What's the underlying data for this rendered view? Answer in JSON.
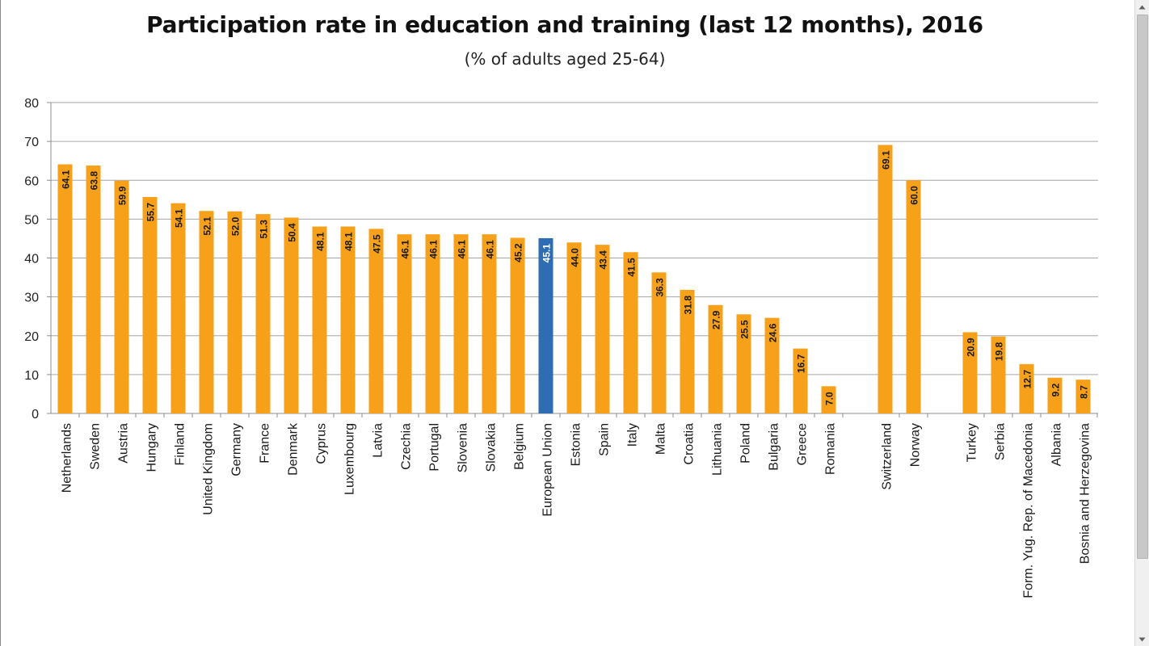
{
  "chart_data": {
    "type": "bar",
    "title": "Participation rate in education and training (last 12 months), 2016",
    "subtitle": "(% of adults aged 25-64)",
    "xlabel": "",
    "ylabel": "",
    "ylim": [
      0,
      80
    ],
    "yticks": [
      0,
      10,
      20,
      30,
      40,
      50,
      60,
      70,
      80
    ],
    "grid": true,
    "legend": "none",
    "colors": {
      "default": "#F7A11B",
      "highlight": "#2E6DB4",
      "grid": "#A6A6A6"
    },
    "groups": [
      {
        "categories": [
          "Netherlands",
          "Sweden",
          "Austria",
          "Hungary",
          "Finland",
          "United Kingdom",
          "Germany",
          "France",
          "Denmark",
          "Cyprus",
          "Luxembourg",
          "Latvia",
          "Czechia",
          "Portugal",
          "Slovenia",
          "Slovakia",
          "Belgium",
          "European Union",
          "Estonia",
          "Spain",
          "Italy",
          "Malta",
          "Croatia",
          "Lithuania",
          "Poland",
          "Bulgaria",
          "Greece",
          "Romania"
        ],
        "values": [
          64.1,
          63.8,
          59.9,
          55.7,
          54.1,
          52.1,
          52.0,
          51.3,
          50.4,
          48.1,
          48.1,
          47.5,
          46.1,
          46.1,
          46.1,
          46.1,
          45.2,
          45.1,
          44.0,
          43.4,
          41.5,
          36.3,
          31.8,
          27.9,
          25.5,
          24.6,
          16.7,
          7.0
        ],
        "labels": [
          "64.1",
          "63.8",
          "59.9",
          "55.7",
          "54.1",
          "52.1",
          "52.0",
          "51.3",
          "50.4",
          "48.1",
          "48.1",
          "47.5",
          "46.1",
          "46.1",
          "46.1",
          "46.1",
          "45.2",
          "45.1",
          "44.0",
          "43.4",
          "41.5",
          "36.3",
          "31.8",
          "27.9",
          "25.5",
          "24.6",
          "16.7",
          "7.0"
        ],
        "highlight": "European Union"
      },
      {
        "categories": [
          "Switzerland",
          "Norway"
        ],
        "values": [
          69.1,
          60.0
        ],
        "labels": [
          "69.1",
          "60.0"
        ]
      },
      {
        "categories": [
          "Turkey",
          "Serbia",
          "Form. Yug. Rep. of Macedonia",
          "Albania",
          "Bosnia and Herzegovina"
        ],
        "values": [
          20.9,
          19.8,
          12.7,
          9.2,
          8.7
        ],
        "labels": [
          "20.9",
          "19.8",
          "12.7",
          "9.2",
          "8.7"
        ]
      }
    ]
  },
  "scrollbar": {
    "up_icon": "triangle-up-icon",
    "down_icon": "triangle-down-icon"
  }
}
